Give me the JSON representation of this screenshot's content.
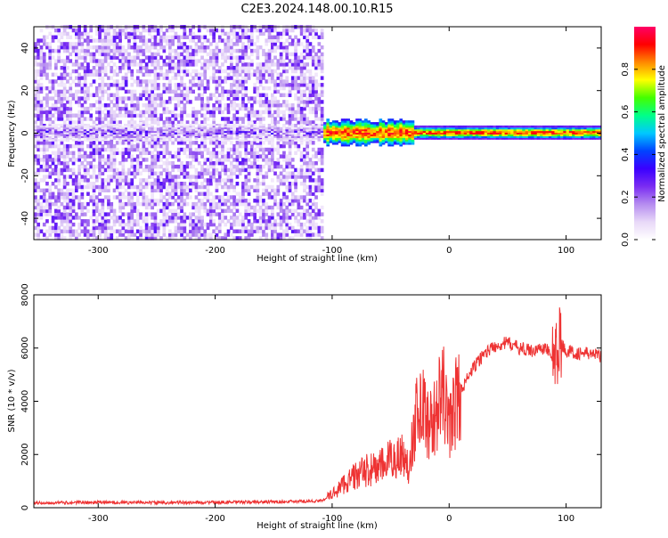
{
  "title": "C2E3.2024.148.00.10.R15",
  "colors": {
    "snr_line": "#ee3333",
    "axis": "#000000",
    "background": "#ffffff"
  },
  "chart_data": [
    {
      "type": "heatmap",
      "xlabel": "Height of straight line (km)",
      "ylabel": "Frequency (Hz)",
      "xlim": [
        -355,
        130
      ],
      "ylim": [
        -50,
        50
      ],
      "x_ticks": [
        -300,
        -200,
        -100,
        0,
        100
      ],
      "y_ticks": [
        -40,
        -20,
        0,
        20,
        40
      ],
      "grid": false,
      "colorbar": {
        "label": "Normalized spectral amplitude",
        "range": [
          0,
          1
        ],
        "ticks": [
          "0.0",
          "0.2",
          "0.4",
          "0.6",
          "0.8"
        ],
        "colormap": [
          "#ffffff",
          "#e8d8f8",
          "#b58cf0",
          "#7a2cf2",
          "#3a00ff",
          "#0044ff",
          "#00c8ff",
          "#00ff88",
          "#44ff00",
          "#ffff00",
          "#ff8800",
          "#ff0000",
          "#ff0066"
        ]
      },
      "description_regions": [
        {
          "x_range": [
            -355,
            -108
          ],
          "f_range": [
            -50,
            50
          ],
          "amplitude": [
            0.05,
            0.3
          ]
        },
        {
          "x_range": [
            -108,
            130
          ],
          "f_range": [
            -5,
            5
          ],
          "amplitude": [
            0.3,
            0.95
          ]
        }
      ]
    },
    {
      "type": "line",
      "xlabel": "Height of straight line (km)",
      "ylabel": "SNR (10 * v/v)",
      "xlim": [
        -355,
        130
      ],
      "ylim": [
        0,
        8000
      ],
      "x_ticks": [
        -300,
        -200,
        -100,
        0,
        100
      ],
      "y_ticks": [
        0,
        2000,
        4000,
        6000,
        8000
      ],
      "grid": false,
      "series": [
        {
          "x": [
            -355,
            -300,
            -250,
            -200,
            -150,
            -110,
            -100,
            -90,
            -80,
            -70,
            -60,
            -50,
            -40,
            -35,
            -30,
            -25,
            -20,
            -15,
            -10,
            -5,
            0,
            5,
            10,
            20,
            30,
            40,
            50,
            60,
            70,
            80,
            85,
            90,
            95,
            100,
            110,
            120,
            130
          ],
          "y": [
            180,
            200,
            190,
            200,
            220,
            250,
            500,
            900,
            1200,
            1400,
            1500,
            1800,
            2000,
            1500,
            3000,
            4000,
            3500,
            3000,
            3800,
            4300,
            3000,
            3900,
            4400,
            5200,
            5800,
            6100,
            6200,
            6000,
            5900,
            6000,
            5900,
            5500,
            6200,
            5900,
            5800,
            5800,
            5700
          ]
        }
      ]
    }
  ]
}
